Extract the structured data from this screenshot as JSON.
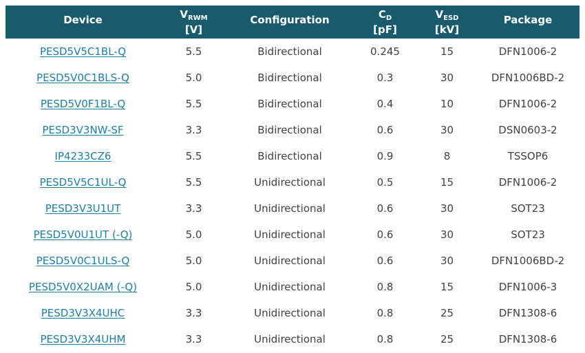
{
  "colors": {
    "header_bg": "#1a5a6d",
    "header_text": "#ffffff",
    "link_color": "#1d7f9f",
    "body_text": "#404040",
    "page_bg": "#ffffff"
  },
  "table": {
    "columns": [
      {
        "label": "Device",
        "sub": "",
        "unit": ""
      },
      {
        "label": "V",
        "sub": "RWM",
        "unit": "[V]"
      },
      {
        "label": "Configuration",
        "sub": "",
        "unit": ""
      },
      {
        "label": "C",
        "sub": "D",
        "unit": "[pF]"
      },
      {
        "label": "V",
        "sub": "ESD",
        "unit": "[kV]"
      },
      {
        "label": "Package",
        "sub": "",
        "unit": ""
      }
    ],
    "rows": [
      {
        "device": "PESD5V5C1BL-Q",
        "vrwm": "5.5",
        "configuration": "Bidirectional",
        "cd": "0.245",
        "vesd": "15",
        "package": "DFN1006-2"
      },
      {
        "device": "PESD5V0C1BLS-Q",
        "vrwm": "5.0",
        "configuration": "Bidirectional",
        "cd": "0.3",
        "vesd": "30",
        "package": "DFN1006BD-2"
      },
      {
        "device": "PESD5V0F1BL-Q",
        "vrwm": "5.5",
        "configuration": "Bidirectional",
        "cd": "0.4",
        "vesd": "10",
        "package": "DFN1006-2"
      },
      {
        "device": "PESD3V3NW-SF",
        "vrwm": "3.3",
        "configuration": "Bidirectional",
        "cd": "0.6",
        "vesd": "30",
        "package": "DSN0603-2"
      },
      {
        "device": "IP4233CZ6",
        "vrwm": "5.5",
        "configuration": "Bidirectional",
        "cd": "0.9",
        "vesd": "8",
        "package": "TSSOP6"
      },
      {
        "device": "PESD5V5C1UL-Q",
        "vrwm": "5.5",
        "configuration": "Unidirectional",
        "cd": "0.5",
        "vesd": "15",
        "package": "DFN1006-2"
      },
      {
        "device": "PESD3V3U1UT",
        "vrwm": "3.3",
        "configuration": "Unidirectional",
        "cd": "0.6",
        "vesd": "30",
        "package": "SOT23"
      },
      {
        "device": "PESD5V0U1UT (-Q)",
        "vrwm": "5.0",
        "configuration": "Unidirectional",
        "cd": "0.6",
        "vesd": "30",
        "package": "SOT23"
      },
      {
        "device": "PESD5V0C1ULS-Q",
        "vrwm": "5.0",
        "configuration": "Unidirectional",
        "cd": "0.6",
        "vesd": "30",
        "package": "DFN1006BD-2"
      },
      {
        "device": "PESD5V0X2UAM (-Q)",
        "vrwm": "5.0",
        "configuration": "Unidirectional",
        "cd": "0.8",
        "vesd": "15",
        "package": "DFN1006-3"
      },
      {
        "device": "PESD3V3X4UHC",
        "vrwm": "3.3",
        "configuration": "Unidirectional",
        "cd": "0.8",
        "vesd": "25",
        "package": "DFN1308-6"
      },
      {
        "device": "PESD3V3X4UHM",
        "vrwm": "3.3",
        "configuration": "Unidirectional",
        "cd": "0.8",
        "vesd": "25",
        "package": "DFN1308-6"
      }
    ]
  }
}
